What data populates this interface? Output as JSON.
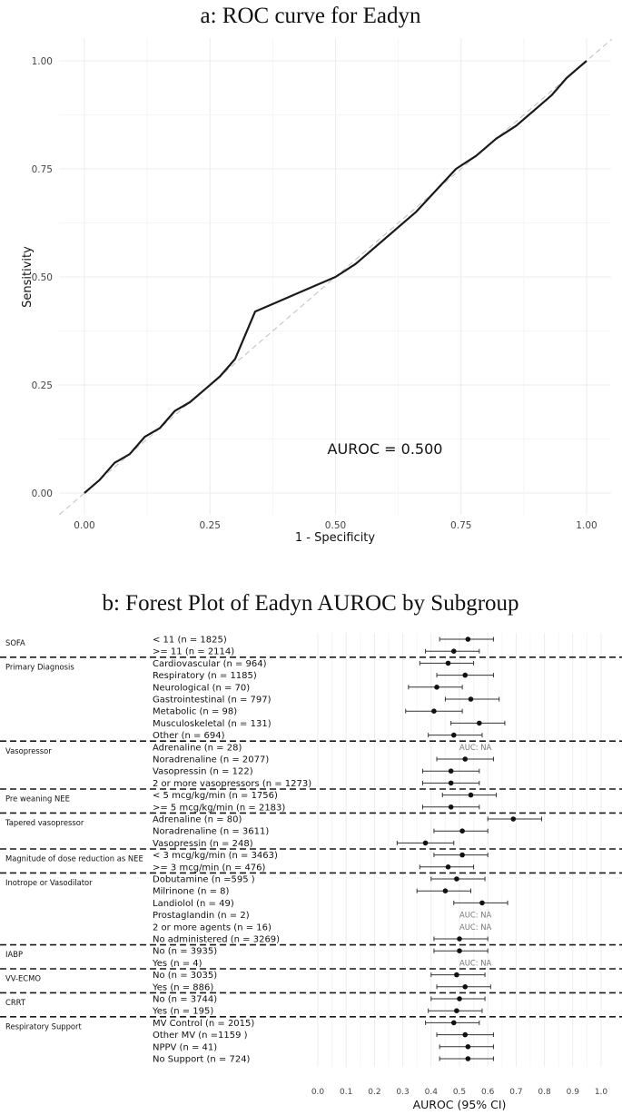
{
  "chart_data": [
    {
      "type": "line",
      "title": "a: ROC curve for Eadyn",
      "xlabel": "1 - Specificity",
      "ylabel": "Sensitivity",
      "xlim": [
        0,
        1
      ],
      "ylim": [
        0,
        1
      ],
      "x_ticks": [
        "0.00",
        "0.25",
        "0.50",
        "0.75",
        "1.00"
      ],
      "y_ticks": [
        "0.00",
        "0.25",
        "0.50",
        "0.75",
        "1.00"
      ],
      "grid": true,
      "reference_line": "diagonal, dashed",
      "annotation": "AUROC = 0.500",
      "series": [
        {
          "x": [
            0.0,
            0.01,
            0.03,
            0.06,
            0.09,
            0.12,
            0.15,
            0.18,
            0.21,
            0.24,
            0.27,
            0.3,
            0.34,
            0.38,
            0.42,
            0.46,
            0.5,
            0.54,
            0.58,
            0.62,
            0.66,
            0.7,
            0.74,
            0.78,
            0.82,
            0.86,
            0.9,
            0.93,
            0.96,
            1.0
          ],
          "y": [
            0.0,
            0.01,
            0.03,
            0.07,
            0.09,
            0.13,
            0.15,
            0.19,
            0.21,
            0.24,
            0.27,
            0.31,
            0.42,
            0.44,
            0.46,
            0.48,
            0.5,
            0.53,
            0.57,
            0.61,
            0.65,
            0.7,
            0.75,
            0.78,
            0.82,
            0.85,
            0.89,
            0.92,
            0.96,
            1.0
          ]
        }
      ]
    },
    {
      "type": "forest",
      "title": "b: Forest Plot of Eadyn AUROC by Subgroup",
      "xlabel": "AUROC (95% CI)",
      "xlim": [
        0.0,
        1.0
      ],
      "x_ticks": [
        "0.0",
        "0.1",
        "0.2",
        "0.3",
        "0.4",
        "0.5",
        "0.6",
        "0.7",
        "0.8",
        "0.9",
        "1.0"
      ],
      "na_label": "AUC: NA",
      "groups": [
        {
          "name": "SOFA",
          "rows": [
            {
              "label": "< 11 (n = 1825)",
              "auc": 0.53,
              "lo": 0.43,
              "hi": 0.62
            },
            {
              "label": ">= 11 (n = 2114)",
              "auc": 0.48,
              "lo": 0.38,
              "hi": 0.57
            }
          ]
        },
        {
          "name": "Primary Diagnosis",
          "rows": [
            {
              "label": "Cardiovascular (n = 964)",
              "auc": 0.46,
              "lo": 0.36,
              "hi": 0.55
            },
            {
              "label": "Respiratory (n = 1185)",
              "auc": 0.52,
              "lo": 0.42,
              "hi": 0.62
            },
            {
              "label": "Neurological (n = 70)",
              "auc": 0.42,
              "lo": 0.32,
              "hi": 0.51
            },
            {
              "label": "Gastrointestinal (n = 797)",
              "auc": 0.54,
              "lo": 0.45,
              "hi": 0.64
            },
            {
              "label": "Metabolic (n = 98)",
              "auc": 0.41,
              "lo": 0.31,
              "hi": 0.51
            },
            {
              "label": "Musculoskeletal (n = 131)",
              "auc": 0.57,
              "lo": 0.47,
              "hi": 0.66
            },
            {
              "label": "Other (n = 694)",
              "auc": 0.48,
              "lo": 0.39,
              "hi": 0.58
            }
          ]
        },
        {
          "name": "Vasopressor",
          "rows": [
            {
              "label": "Adrenaline (n = 28)",
              "auc": null
            },
            {
              "label": "Noradrenaline (n = 2077)",
              "auc": 0.52,
              "lo": 0.42,
              "hi": 0.62
            },
            {
              "label": "Vasopressin (n = 122)",
              "auc": 0.47,
              "lo": 0.37,
              "hi": 0.57
            },
            {
              "label": "2 or more vasopressors (n = 1273)",
              "auc": 0.47,
              "lo": 0.37,
              "hi": 0.57
            }
          ]
        },
        {
          "name": "Pre weaning NEE",
          "rows": [
            {
              "label": "< 5 mcg/kg/min (n = 1756)",
              "auc": 0.54,
              "lo": 0.44,
              "hi": 0.63
            },
            {
              "label": ">= 5 mcg/kg/min (n = 2183)",
              "auc": 0.47,
              "lo": 0.37,
              "hi": 0.57
            }
          ]
        },
        {
          "name": "Tapered vasopressor",
          "rows": [
            {
              "label": "Adrenaline (n = 80)",
              "auc": 0.69,
              "lo": 0.6,
              "hi": 0.79
            },
            {
              "label": "Noradrenaline (n = 3611)",
              "auc": 0.51,
              "lo": 0.41,
              "hi": 0.6
            },
            {
              "label": "Vasopressin (n = 248)",
              "auc": 0.38,
              "lo": 0.28,
              "hi": 0.48
            }
          ]
        },
        {
          "name": "Magnitude of dose reduction as NEE",
          "rows": [
            {
              "label": "< 3 mcg/kg/min (n = 3463)",
              "auc": 0.51,
              "lo": 0.41,
              "hi": 0.6
            },
            {
              "label": ">= 3 mcg/min (n = 476)",
              "auc": 0.46,
              "lo": 0.36,
              "hi": 0.55
            }
          ]
        },
        {
          "name": "Inotrope or Vasodilator",
          "rows": [
            {
              "label": "Dobutamine (n =595 )",
              "auc": 0.49,
              "lo": 0.4,
              "hi": 0.59
            },
            {
              "label": "Milrinone (n = 8)",
              "auc": 0.45,
              "lo": 0.35,
              "hi": 0.54
            },
            {
              "label": "Landiolol (n = 49)",
              "auc": 0.58,
              "lo": 0.48,
              "hi": 0.67
            },
            {
              "label": "Prostaglandin (n = 2)",
              "auc": null
            },
            {
              "label": "2 or more agents (n = 16)",
              "auc": null
            },
            {
              "label": "No administered (n = 3269)",
              "auc": 0.5,
              "lo": 0.41,
              "hi": 0.6
            }
          ]
        },
        {
          "name": "IABP",
          "rows": [
            {
              "label": "No (n = 3935)",
              "auc": 0.5,
              "lo": 0.41,
              "hi": 0.6
            },
            {
              "label": "Yes (n = 4)",
              "auc": null
            }
          ]
        },
        {
          "name": "VV-ECMO",
          "rows": [
            {
              "label": "No (n = 3035)",
              "auc": 0.49,
              "lo": 0.4,
              "hi": 0.59
            },
            {
              "label": "Yes (n = 886)",
              "auc": 0.52,
              "lo": 0.42,
              "hi": 0.61
            }
          ]
        },
        {
          "name": "CRRT",
          "rows": [
            {
              "label": "No (n = 3744)",
              "auc": 0.5,
              "lo": 0.4,
              "hi": 0.59
            },
            {
              "label": "Yes (n = 195)",
              "auc": 0.49,
              "lo": 0.39,
              "hi": 0.58
            }
          ]
        },
        {
          "name": "Respiratory Support",
          "rows": [
            {
              "label": "MV Control (n = 2015)",
              "auc": 0.48,
              "lo": 0.38,
              "hi": 0.57
            },
            {
              "label": "Other MV (n =1159 )",
              "auc": 0.52,
              "lo": 0.42,
              "hi": 0.62
            },
            {
              "label": "NPPV (n = 41)",
              "auc": 0.53,
              "lo": 0.43,
              "hi": 0.62
            },
            {
              "label": "No Support (n = 724)",
              "auc": 0.53,
              "lo": 0.43,
              "hi": 0.62
            }
          ]
        }
      ]
    }
  ]
}
